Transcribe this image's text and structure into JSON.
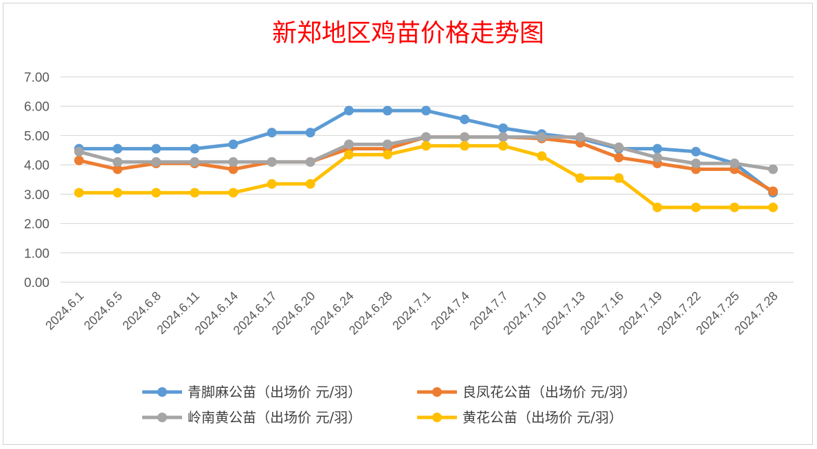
{
  "chart_data": {
    "type": "line",
    "title": "新郑地区鸡苗价格走势图",
    "categories": [
      "2024.6.1",
      "2024.6.5",
      "2024.6.8",
      "2024.6.11",
      "2024.6.14",
      "2024.6.17",
      "2024.6.20",
      "2024.6.24",
      "2024.6.28",
      "2024.7.1",
      "2024.7.4",
      "2024.7.7",
      "2024.7.10",
      "2024.7.13",
      "2024.7.16",
      "2024.7.19",
      "2024.7.22",
      "2024.7.25",
      "2024.7.28"
    ],
    "ylim": [
      0,
      7
    ],
    "yticks": [
      "0.00",
      "1.00",
      "2.00",
      "3.00",
      "4.00",
      "5.00",
      "6.00",
      "7.00"
    ],
    "grid": true,
    "legend_position": "bottom",
    "series": [
      {
        "name": "青脚麻公苗（出场价 元/羽）",
        "color": "#5b9bd5",
        "values": [
          4.55,
          4.55,
          4.55,
          4.55,
          4.7,
          5.1,
          5.1,
          5.85,
          5.85,
          5.85,
          5.55,
          5.25,
          5.05,
          4.9,
          4.55,
          4.55,
          4.45,
          4.05,
          3.05
        ]
      },
      {
        "name": "良凤花公苗（出场价 元/羽）",
        "color": "#ed7d31",
        "values": [
          4.15,
          3.85,
          4.05,
          4.05,
          3.85,
          4.1,
          4.1,
          4.55,
          4.55,
          4.95,
          4.95,
          4.95,
          4.9,
          4.75,
          4.25,
          4.05,
          3.85,
          3.85,
          3.1
        ]
      },
      {
        "name": "岭南黄公苗（出场价 元/羽）",
        "color": "#a5a5a5",
        "values": [
          4.45,
          4.1,
          4.1,
          4.1,
          4.1,
          4.1,
          4.1,
          4.7,
          4.7,
          4.95,
          4.95,
          4.95,
          4.95,
          4.95,
          4.6,
          4.25,
          4.05,
          4.05,
          3.85
        ]
      },
      {
        "name": "黄花公苗（出场价 元/羽）",
        "color": "#ffc000",
        "values": [
          3.05,
          3.05,
          3.05,
          3.05,
          3.05,
          3.35,
          3.35,
          4.35,
          4.35,
          4.65,
          4.65,
          4.65,
          4.3,
          3.55,
          3.55,
          2.55,
          2.55,
          2.55,
          2.55
        ]
      }
    ]
  }
}
